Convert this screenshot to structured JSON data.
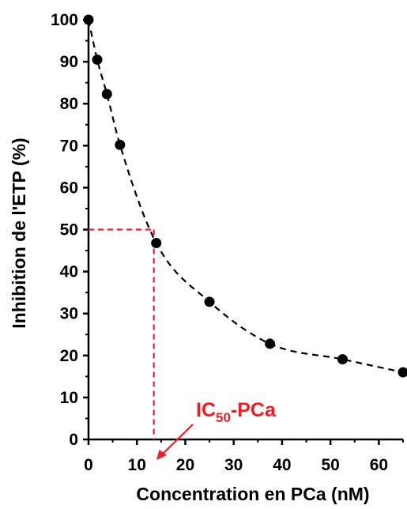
{
  "chart_data": {
    "type": "scatter",
    "xlabel": "Concentration en PCa (nM)",
    "ylabel": "Inhibition de l'ETP (%)",
    "xlim": [
      0,
      65
    ],
    "ylim": [
      0,
      100
    ],
    "x_ticks": [
      0,
      10,
      20,
      30,
      40,
      50,
      60
    ],
    "y_ticks": [
      0,
      10,
      20,
      30,
      40,
      50,
      60,
      70,
      80,
      90,
      100
    ],
    "grid": false,
    "legend": "none",
    "series": [
      {
        "x": [
          0,
          1.8,
          3.8,
          6.5,
          14,
          25,
          37.5,
          52.5,
          65
        ],
        "y": [
          100,
          90.5,
          82.3,
          70.2,
          46.8,
          32.8,
          22.8,
          19.1,
          16.0
        ],
        "marker": "circle",
        "color": "#000000"
      }
    ],
    "fit_curve": {
      "style": "dashed",
      "color": "#000000"
    },
    "ic50": {
      "x": 13.5,
      "y": 50,
      "color": "#ee1c24"
    },
    "annotation": {
      "text_main": "IC",
      "text_sub": "50",
      "text_suffix": "-PCa",
      "color": "#ee1c24"
    }
  }
}
